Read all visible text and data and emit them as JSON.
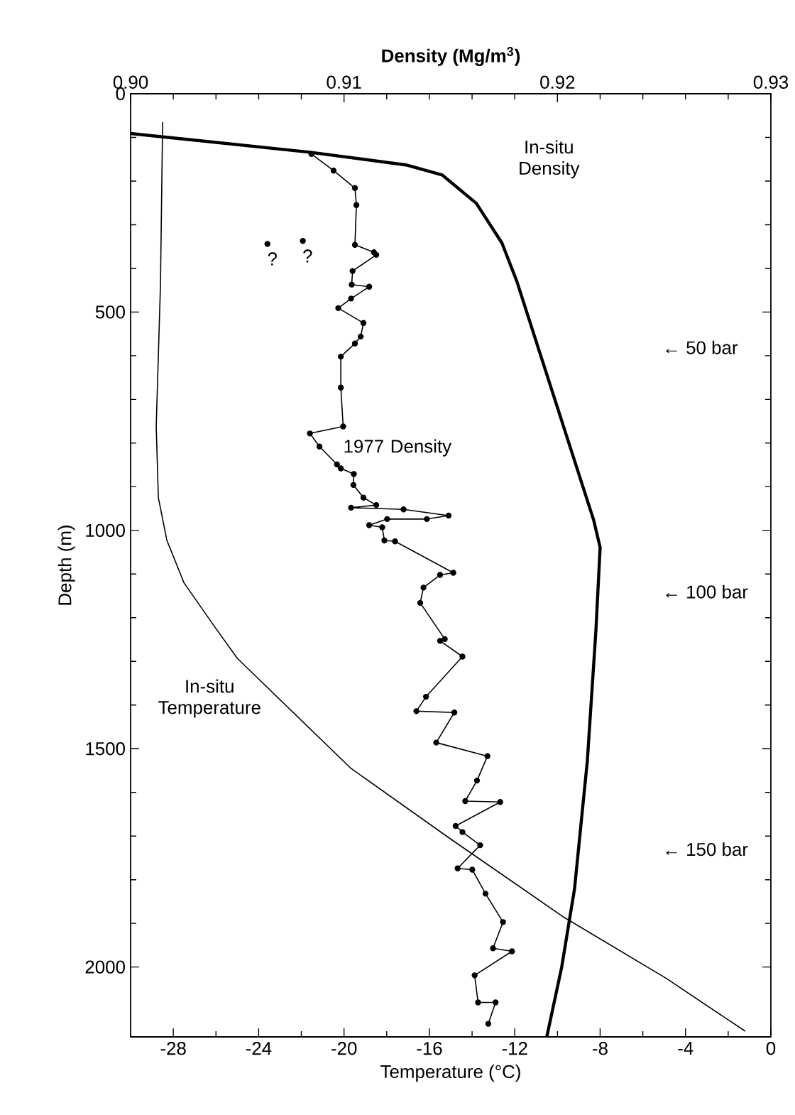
{
  "chart_data": {
    "type": "line",
    "xlabel": "Temperature (°C)",
    "x2label": "Density  (Mg/m$^{3}$)",
    "ylabel": "Depth (m)",
    "xlim": [
      -30,
      0
    ],
    "xticks": [
      -28,
      -24,
      -20,
      -16,
      -12,
      -8,
      -4,
      0
    ],
    "x2lim": [
      0.9,
      0.93
    ],
    "x2ticks": [
      {
        "value": 0.9,
        "label": "0.90"
      },
      0.91,
      0.92,
      0.93
    ],
    "ylim": [
      2160,
      0
    ],
    "yticks": [
      0,
      500,
      1000,
      1500,
      2000
    ],
    "grid": false,
    "legend": false,
    "series": [
      {
        "name": "In-situ Density",
        "axis": "x2",
        "color": "#000000",
        "marker": "none",
        "x": [
          0.9,
          0.9084,
          0.9129,
          0.9146,
          0.9162,
          0.9174,
          0.9181,
          0.9217,
          0.922,
          0.9218,
          0.9214,
          0.9208,
          0.9202,
          0.9195
        ],
        "values": [
          91,
          134,
          163,
          186,
          251,
          342,
          430,
          977,
          1039,
          1231,
          1528,
          1821,
          2000,
          2160
        ]
      },
      {
        "name": "1977 Density",
        "axis": "x2",
        "color": "#000000",
        "marker": "circle",
        "x": [
          0.90847,
          0.90951,
          0.91051,
          0.91058,
          0.91051,
          0.9114,
          0.91151,
          0.9104,
          0.91036,
          0.91118,
          0.91033,
          0.90973,
          0.91091,
          0.91078,
          0.91051,
          0.90985,
          0.90985,
          0.90996,
          0.9084,
          0.90885,
          0.90967,
          0.90985,
          0.91046,
          0.91044,
          0.91091,
          0.91151,
          0.91033,
          0.91279,
          0.9149,
          0.91388,
          0.91202,
          0.91118,
          0.91179,
          0.91189,
          0.91239,
          0.91512,
          0.9145,
          0.91372,
          0.91357,
          0.91472,
          0.9145,
          0.91555,
          0.91384,
          0.91339,
          0.91517,
          0.91432,
          0.91672,
          0.91623,
          0.91568,
          0.91732,
          0.91523,
          0.91555,
          0.91638,
          0.91532,
          0.91601,
          0.91663,
          0.91745,
          0.91698,
          0.91787,
          0.91612,
          0.91628,
          0.9171,
          0.91676
        ],
        "values": [
          138,
          176,
          216,
          255,
          346,
          363,
          369,
          406,
          437,
          442,
          469,
          491,
          525,
          556,
          572,
          602,
          673,
          762,
          778,
          808,
          849,
          858,
          871,
          896,
          925,
          942,
          948,
          952,
          966,
          974,
          974,
          988,
          993,
          1023,
          1025,
          1097,
          1102,
          1131,
          1166,
          1249,
          1253,
          1289,
          1381,
          1414,
          1417,
          1486,
          1517,
          1573,
          1620,
          1622,
          1677,
          1691,
          1721,
          1774,
          1777,
          1832,
          1897,
          1957,
          1964,
          2019,
          2081,
          2081,
          2130
        ]
      },
      {
        "type": "scatter",
        "axis": "x2",
        "color": "#000000",
        "marker": "circle",
        "x": [
          0.90641,
          0.90807
        ],
        "values": [
          344,
          337
        ]
      },
      {
        "name": "In-situ Temperature",
        "color": "#000000",
        "marker": "none",
        "x": [
          -28.5,
          -28.6,
          -28.8,
          -28.7,
          -28.3,
          -27.5,
          -26.1,
          -25.0,
          -19.7,
          -15.0,
          -9.7,
          -4.9,
          -1.2
        ],
        "values": [
          65,
          436,
          762,
          925,
          1023,
          1120,
          1218,
          1293,
          1544,
          1707,
          1886,
          2026,
          2147
        ]
      }
    ],
    "annotations": [
      "?",
      "?",
      "← 50 bar",
      "← 100 bar",
      "← 150 bar"
    ]
  }
}
